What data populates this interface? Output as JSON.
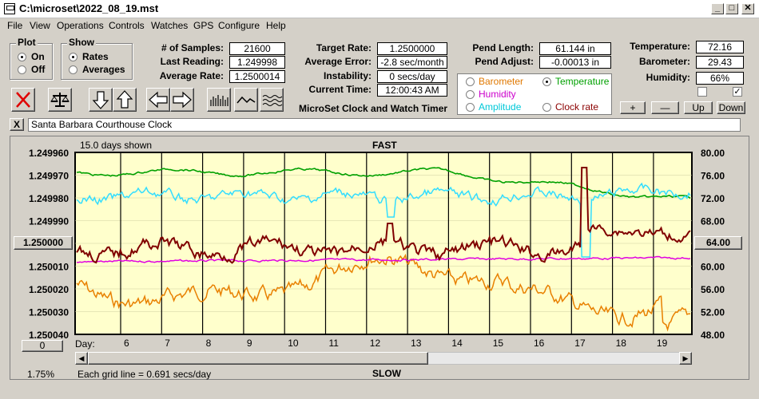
{
  "window": {
    "title": "C:\\microset\\2022_08_19.mst"
  },
  "menu": [
    "File",
    "View",
    "Operations",
    "Controls",
    "Watches",
    "GPS",
    "Configure",
    "Help"
  ],
  "plot_group": {
    "title": "Plot",
    "options": [
      {
        "label": "On",
        "selected": true
      },
      {
        "label": "Off",
        "selected": false
      }
    ]
  },
  "show_group": {
    "title": "Show",
    "options": [
      {
        "label": "Rates",
        "selected": true
      },
      {
        "label": "Averages",
        "selected": false
      }
    ]
  },
  "stats": {
    "samples_label": "# of Samples:",
    "samples": "21600",
    "last_label": "Last Reading:",
    "last": "1.249998",
    "avg_label": "Average Rate:",
    "avg": "1.2500014",
    "target_label": "Target Rate:",
    "target": "1.2500000",
    "avgerr_label": "Average Error:",
    "avgerr": "-2.8 sec/month",
    "instab_label": "Instability:",
    "instab": "0 secs/day",
    "time_label": "Current Time:",
    "time": "12:00:43 AM",
    "pendlen_label": "Pend Length:",
    "pendlen": "61.144 in",
    "pendadj_label": "Pend Adjust:",
    "pendadj": "-0.00013 in",
    "temp_label": "Temperature:",
    "temp": "72.16",
    "baro_label": "Barometer:",
    "baro": "29.43",
    "hum_label": "Humidity:",
    "hum": "66%"
  },
  "app_caption": "MicroSet Clock and Watch Timer",
  "secondary": {
    "options": [
      {
        "label": "Barometer",
        "color": "#e07800",
        "selected": false
      },
      {
        "label": "Temperature",
        "color": "#00a000",
        "selected": true
      },
      {
        "label": "Humidity",
        "color": "#cc00cc",
        "selected": false
      },
      {
        "label": "Amplitude",
        "color": "#00d0e0",
        "selected": false
      },
      {
        "label": "Clock rate",
        "color": "#8b0000",
        "selected": false
      }
    ]
  },
  "checks": {
    "left": false,
    "right": true,
    "right_mark": "✓"
  },
  "scale_buttons": {
    "plus": "+",
    "minus": "—",
    "up": "Up",
    "down": "Down"
  },
  "watch_name": "Santa Barbara Courthouse Clock",
  "close_x": "X",
  "plot": {
    "days_shown": "15.0 days shown",
    "fast": "FAST",
    "slow": "SLOW",
    "left_ticks": [
      "1.249960",
      "1.249970",
      "1.249980",
      "1.249990",
      "1.250000",
      "1.250010",
      "1.250020",
      "1.250030",
      "1.250040"
    ],
    "left_center_btn": "1.250000",
    "right_ticks": [
      "80.00",
      "76.00",
      "72.00",
      "68.00",
      "64.00",
      "60.00",
      "56.00",
      "52.00",
      "48.00"
    ],
    "right_center_btn": "64.00",
    "day_label": "Day:",
    "days": [
      "6",
      "7",
      "8",
      "9",
      "10",
      "11",
      "12",
      "13",
      "14",
      "15",
      "16",
      "17",
      "18",
      "19"
    ],
    "zero_btn": "0",
    "percent": "1.75%",
    "grid_note": "Each grid line = 0.691 secs/day",
    "colors": {
      "bg": "#ffffcc",
      "temp": "#00a000",
      "amp": "#33ddff",
      "rate": "#800000",
      "hum": "#e000e0",
      "baro": "#e88000"
    }
  }
}
